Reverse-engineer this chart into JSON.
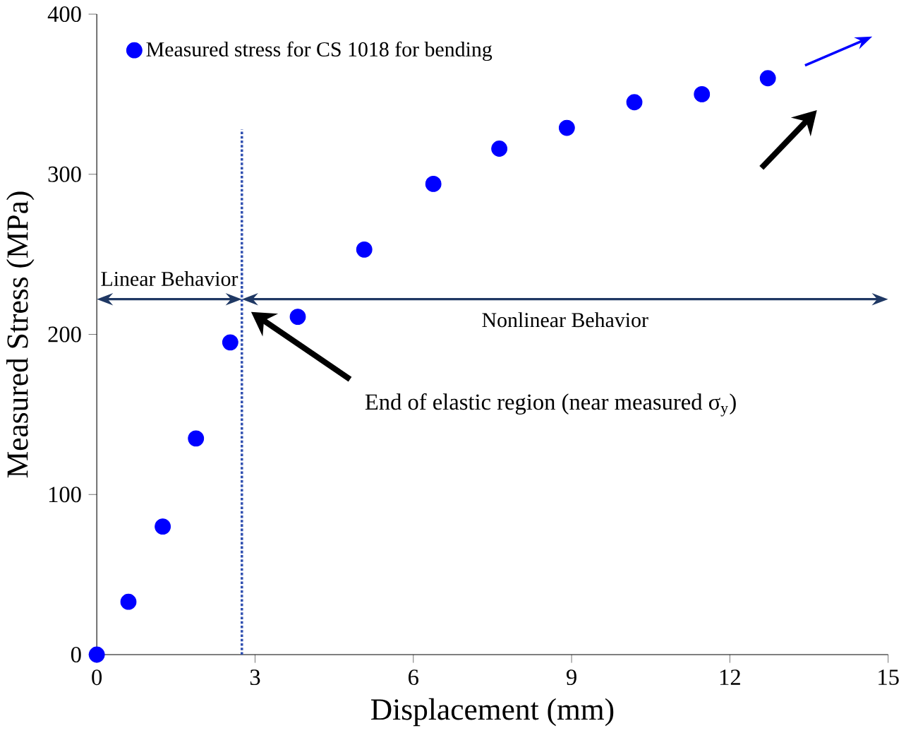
{
  "chart_data": {
    "type": "scatter",
    "xlabel": "Displacement (mm)",
    "ylabel": "Measured Stress (MPa)",
    "x": [
      0,
      0.6,
      1.25,
      1.88,
      2.53,
      3.81,
      5.07,
      6.38,
      7.63,
      8.91,
      10.19,
      11.47,
      12.72
    ],
    "series": [
      {
        "name": "Measured stress for CS 1018 for bending",
        "color": "#0000ff",
        "values": [
          0,
          33,
          80,
          135,
          195,
          211,
          253,
          294,
          316,
          329,
          345,
          350,
          360
        ]
      }
    ],
    "xlim": [
      0,
      15
    ],
    "ylim": [
      0,
      400
    ],
    "xticks": [
      0,
      3,
      6,
      9,
      12,
      15
    ],
    "yticks": [
      0,
      100,
      200,
      300,
      400
    ],
    "ref_lines": [
      {
        "axis": "x",
        "value": 2.75,
        "color": "#2f4fb0",
        "line_style": "dotted"
      }
    ],
    "annotations": [
      "Linear Behavior",
      "Nonlinear Behavior",
      "End of elastic region (near measured σ$_{y}$)"
    ],
    "legend": "top left",
    "marker": "circle",
    "grid": false
  }
}
